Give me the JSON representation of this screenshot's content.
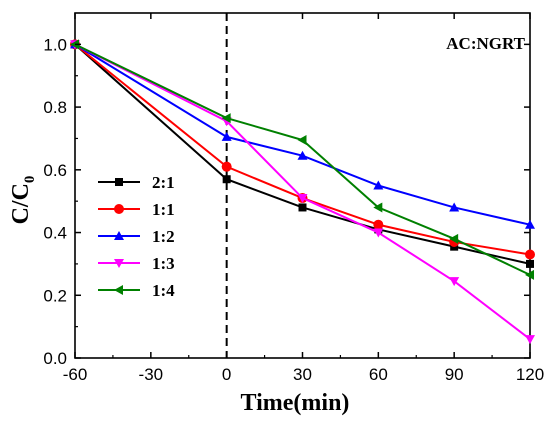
{
  "chart_data": {
    "type": "line",
    "annotation": "AC:NGRT",
    "xlabel": "Time(min)",
    "ylabel_main": "C/C",
    "ylabel_sub": "0",
    "xlim": [
      -60,
      120
    ],
    "ylim": [
      0.0,
      1.1
    ],
    "xticks": [
      -60,
      -30,
      0,
      30,
      60,
      90,
      120
    ],
    "xtick_labels": [
      "-60",
      "-30",
      "0",
      "30",
      "60",
      "90",
      "120"
    ],
    "yticks": [
      0.0,
      0.2,
      0.4,
      0.6,
      0.8,
      1.0
    ],
    "ytick_labels": [
      "0.0",
      "0.2",
      "0.4",
      "0.6",
      "0.8",
      "1.0"
    ],
    "vertical_reference_line_x": 0,
    "legend_position": "left-center",
    "series": [
      {
        "name": "2:1",
        "color": "#000000",
        "marker": "square",
        "x": [
          -60,
          0,
          30,
          60,
          90,
          120
        ],
        "y": [
          1.0,
          0.57,
          0.48,
          0.41,
          0.355,
          0.3
        ]
      },
      {
        "name": "1:1",
        "color": "#ff0000",
        "marker": "circle",
        "x": [
          -60,
          0,
          30,
          60,
          90,
          120
        ],
        "y": [
          1.0,
          0.61,
          0.51,
          0.425,
          0.37,
          0.33
        ]
      },
      {
        "name": "1:2",
        "color": "#0000ff",
        "marker": "triangle-up",
        "x": [
          -60,
          0,
          30,
          60,
          90,
          120
        ],
        "y": [
          1.0,
          0.705,
          0.645,
          0.55,
          0.48,
          0.425
        ]
      },
      {
        "name": "1:3",
        "color": "#ff00ff",
        "marker": "triangle-down",
        "x": [
          -60,
          0,
          30,
          60,
          90,
          120
        ],
        "y": [
          1.0,
          0.755,
          0.51,
          0.4,
          0.245,
          0.06
        ]
      },
      {
        "name": "1:4",
        "color": "#008000",
        "marker": "triangle-left",
        "x": [
          -60,
          0,
          30,
          60,
          90,
          120
        ],
        "y": [
          1.0,
          0.765,
          0.695,
          0.48,
          0.38,
          0.265
        ]
      }
    ]
  }
}
